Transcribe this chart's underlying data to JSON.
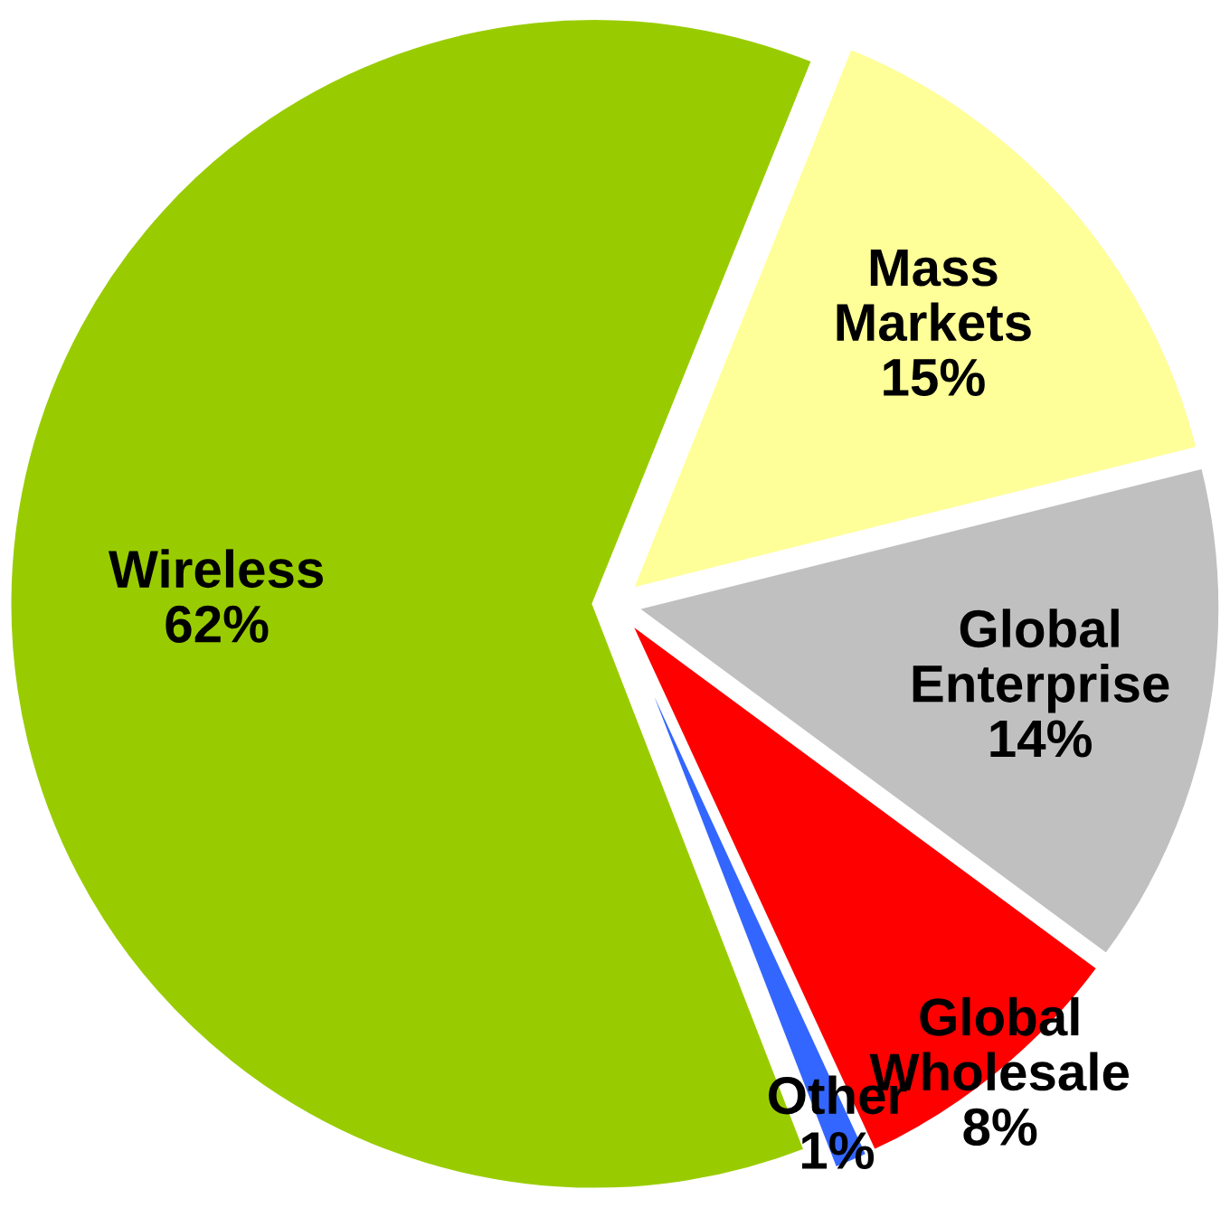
{
  "chart_data": {
    "type": "pie",
    "categories": [
      "Mass Markets",
      "Global Enterprise",
      "Global Wholesale",
      "Other",
      "Wireless"
    ],
    "values": [
      15,
      14,
      8,
      1,
      62
    ],
    "colors": [
      "#ffff99",
      "#c0c0c0",
      "#ff0000",
      "#3366ff",
      "#99cc00"
    ],
    "value_labels": [
      "15%",
      "14%",
      "8%",
      "1%",
      "62%"
    ],
    "legend": false
  }
}
